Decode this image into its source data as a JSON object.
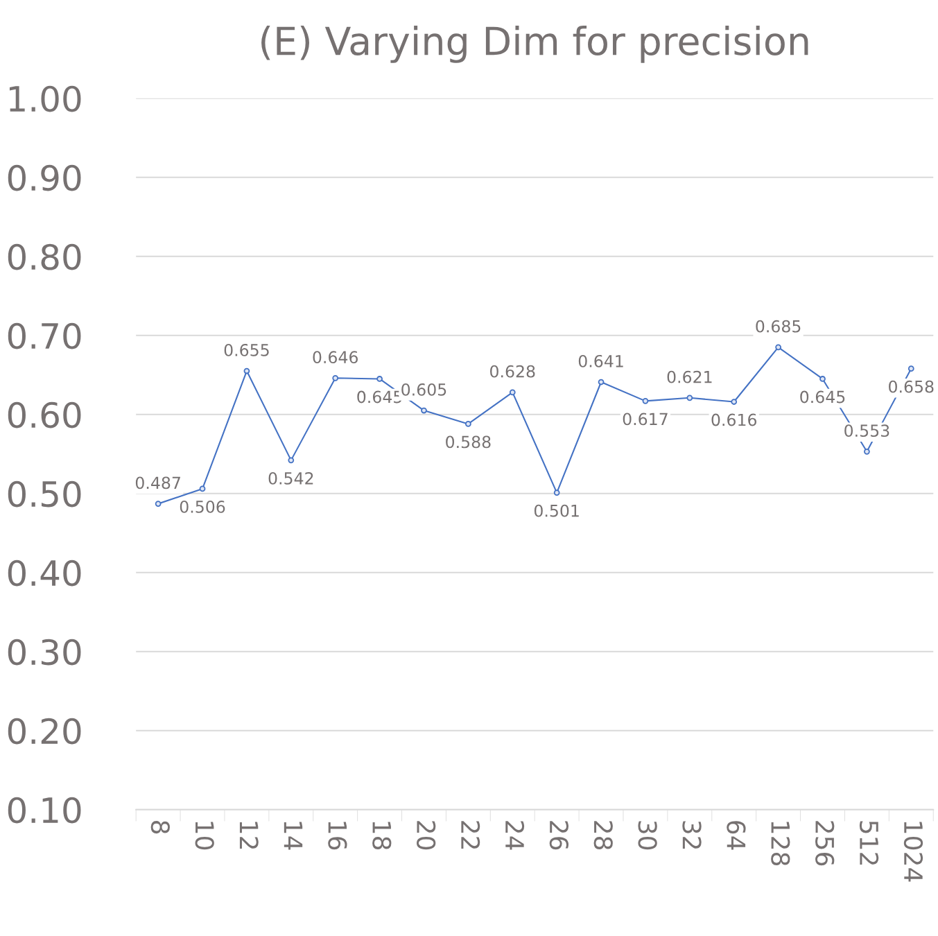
{
  "chart_data": {
    "type": "line",
    "title": "(E) Varying Dim for precision",
    "categories": [
      "8",
      "10",
      "12",
      "14",
      "16",
      "18",
      "20",
      "22",
      "24",
      "26",
      "28",
      "30",
      "32",
      "64",
      "128",
      "256",
      "512",
      "1024"
    ],
    "series": [
      {
        "color": "#4472c4",
        "values": [
          0.487,
          0.506,
          0.655,
          0.542,
          0.646,
          0.645,
          0.605,
          0.588,
          0.628,
          0.501,
          0.641,
          0.617,
          0.621,
          0.616,
          0.685,
          0.645,
          0.553,
          0.658
        ]
      }
    ],
    "ylim": [
      0.1,
      1.0
    ],
    "yticks": [
      {
        "value": 0.1,
        "label": "0.10"
      },
      {
        "value": 0.2,
        "label": "0.20"
      },
      {
        "value": 0.3,
        "label": "0.30"
      },
      {
        "value": 0.4,
        "label": "0.40"
      },
      {
        "value": 0.5,
        "label": "0.50"
      },
      {
        "value": 0.6,
        "label": "0.60"
      },
      {
        "value": 0.7,
        "label": "0.70"
      },
      {
        "value": 0.8,
        "label": "0.80"
      },
      {
        "value": 0.9,
        "label": "0.90"
      },
      {
        "value": 1.0,
        "label": "1.00"
      }
    ],
    "grid": "y",
    "marker": "circle",
    "line_style": "solid",
    "data_labels": true
  }
}
